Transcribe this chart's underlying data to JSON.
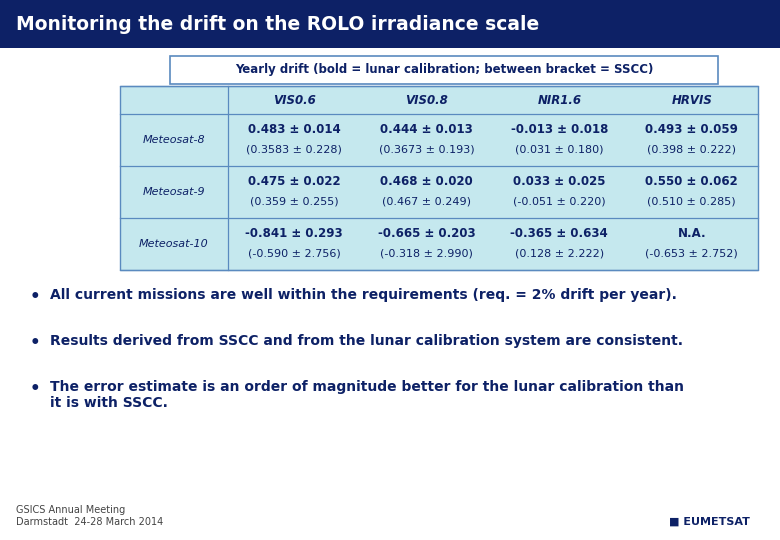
{
  "title": "Monitoring the drift on the ROLO irradiance scale",
  "title_bg": "#0d2166",
  "title_color": "#ffffff",
  "subtitle": "Yearly drift (bold = lunar calibration; between bracket = SSCC)",
  "subtitle_bg": "#ffffff",
  "subtitle_border": "#5a8abf",
  "table_bg": "#c5e8ee",
  "table_border": "#5a8abf",
  "col_headers": [
    "VIS0.6",
    "VIS0.8",
    "NIR1.6",
    "HRVIS"
  ],
  "row_headers": [
    "Meteosat-8",
    "Meteosat-9",
    "Meteosat-10"
  ],
  "bold_rows": [
    [
      "0.483 ± 0.014",
      "0.444 ± 0.013",
      "-0.013 ± 0.018",
      "0.493 ± 0.059"
    ],
    [
      "0.475 ± 0.022",
      "0.468 ± 0.020",
      "0.033 ± 0.025",
      "0.550 ± 0.062"
    ],
    [
      "-0.841 ± 0.293",
      "-0.665 ± 0.203",
      "-0.365 ± 0.634",
      "N.A."
    ]
  ],
  "normal_rows": [
    [
      "(0.3583 ± 0.228)",
      "(0.3673 ± 0.193)",
      "(0.031 ± 0.180)",
      "(0.398 ± 0.222)"
    ],
    [
      "(0.359 ± 0.255)",
      "(0.467 ± 0.249)",
      "(-0.051 ± 0.220)",
      "(0.510 ± 0.285)"
    ],
    [
      "(-0.590 ± 2.756)",
      "(-0.318 ± 2.990)",
      "(0.128 ± 2.222)",
      "(-0.653 ± 2.752)"
    ]
  ],
  "bullet_points": [
    "All current missions are well within the requirements (req. = 2% drift per year).",
    "Results derived from SSCC and from the lunar calibration system are consistent.",
    "The error estimate is an order of magnitude better for the lunar calibration than\nit is with SSCC."
  ],
  "footer_line1": "GSICS Annual Meeting",
  "footer_line2": "Darmstadt  24-28 March 2014",
  "text_color_dark": "#0d2166",
  "text_color_table": "#0d2166",
  "bg_color": "#ffffff"
}
